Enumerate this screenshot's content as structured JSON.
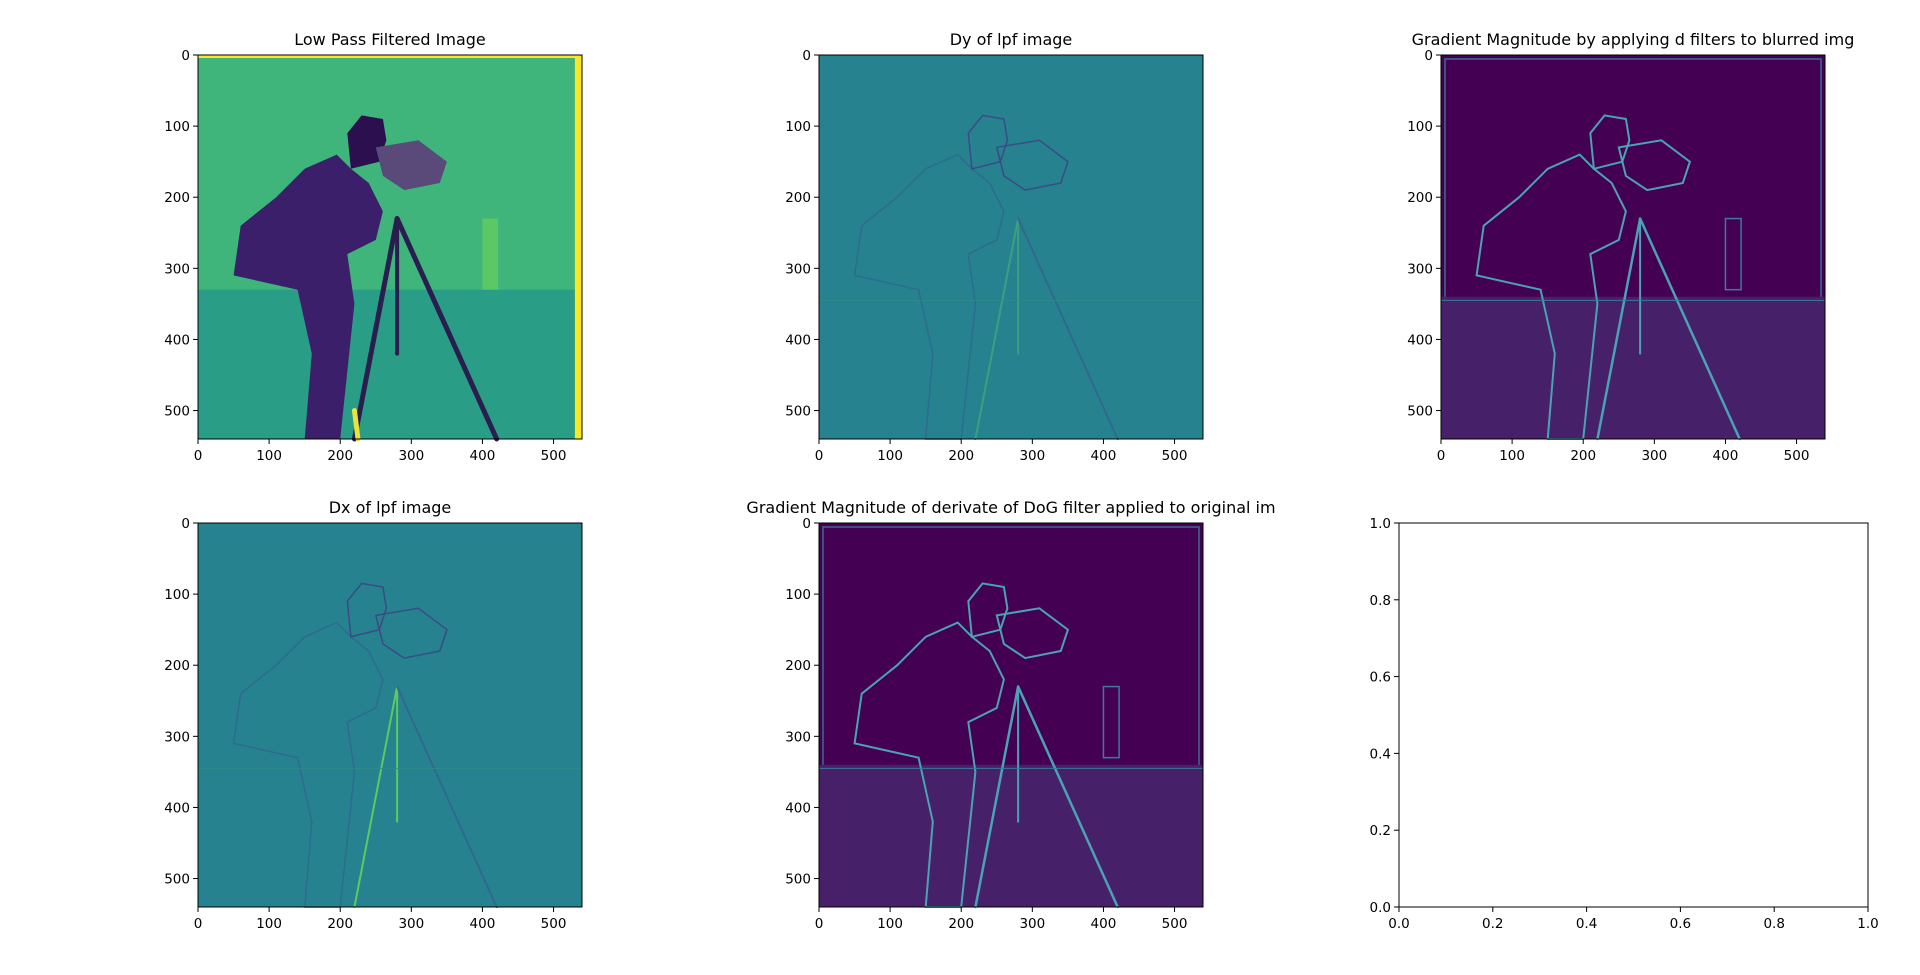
{
  "colors": {
    "viridis_dark": "#440154",
    "viridis_teal": "#26828e",
    "viridis_green": "#35b779",
    "viridis_yellow": "#fde725",
    "axis": "#000000",
    "background": "#ffffff"
  },
  "chart_data": [
    {
      "type": "heatmap",
      "title": "Low Pass Filtered Image",
      "colormap": "viridis",
      "xlim": [
        0,
        540
      ],
      "ylim": [
        540,
        0
      ],
      "xticks": [
        0,
        100,
        200,
        300,
        400,
        500
      ],
      "yticks": [
        0,
        100,
        200,
        300,
        400,
        500
      ],
      "xlabel": "",
      "ylabel": ""
    },
    {
      "type": "heatmap",
      "title": "Dy of lpf image",
      "colormap": "viridis",
      "xlim": [
        0,
        540
      ],
      "ylim": [
        540,
        0
      ],
      "xticks": [
        0,
        100,
        200,
        300,
        400,
        500
      ],
      "yticks": [
        0,
        100,
        200,
        300,
        400,
        500
      ],
      "xlabel": "",
      "ylabel": ""
    },
    {
      "type": "heatmap",
      "title": "Gradient Magnitude by applying d filters to blurred img",
      "colormap": "viridis",
      "xlim": [
        0,
        540
      ],
      "ylim": [
        540,
        0
      ],
      "xticks": [
        0,
        100,
        200,
        300,
        400,
        500
      ],
      "yticks": [
        0,
        100,
        200,
        300,
        400,
        500
      ],
      "xlabel": "",
      "ylabel": ""
    },
    {
      "type": "heatmap",
      "title": "Dx of lpf image",
      "colormap": "viridis",
      "xlim": [
        0,
        540
      ],
      "ylim": [
        540,
        0
      ],
      "xticks": [
        0,
        100,
        200,
        300,
        400,
        500
      ],
      "yticks": [
        0,
        100,
        200,
        300,
        400,
        500
      ],
      "xlabel": "",
      "ylabel": ""
    },
    {
      "type": "heatmap",
      "title": "Gradient Magnitude of derivate of DoG filter applied to original im",
      "colormap": "viridis",
      "xlim": [
        0,
        540
      ],
      "ylim": [
        540,
        0
      ],
      "xticks": [
        0,
        100,
        200,
        300,
        400,
        500
      ],
      "yticks": [
        0,
        100,
        200,
        300,
        400,
        500
      ],
      "xlabel": "",
      "ylabel": ""
    },
    {
      "type": "line",
      "title": "",
      "series": [],
      "xlim": [
        0.0,
        1.0
      ],
      "ylim": [
        0.0,
        1.0
      ],
      "xticks": [
        "0.0",
        "0.2",
        "0.4",
        "0.6",
        "0.8",
        "1.0"
      ],
      "yticks": [
        "0.0",
        "0.2",
        "0.4",
        "0.6",
        "0.8",
        "1.0"
      ],
      "xlabel": "",
      "ylabel": ""
    }
  ]
}
